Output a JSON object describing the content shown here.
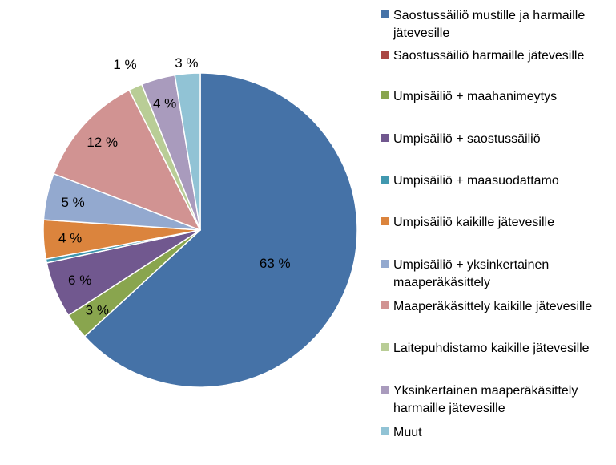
{
  "chart_data": {
    "type": "pie",
    "title": "",
    "start": "top (12 o'clock)",
    "direction": "clockwise",
    "legend_position": "right",
    "slices": [
      {
        "name": "Saostussäiliö mustille ja harmaille jätevesille",
        "legend_lines": [
          "Saostussäiliö mustille ja harmaille",
          "jätevesille"
        ],
        "value": 63.3,
        "label": "63 %",
        "color": "#4572A7"
      },
      {
        "name": "Saostussäiliö harmaille jätevesille",
        "legend_lines": [
          "Saostussäiliö harmaille jätevesille"
        ],
        "value": 0.0,
        "label": "",
        "color": "#AA4643"
      },
      {
        "name": "Umpisäiliö + maahanimeytys",
        "legend_lines": [
          "Umpisäiliö + maahanimeytys"
        ],
        "value": 2.7,
        "label": "3 %",
        "color": "#89A54E"
      },
      {
        "name": "Umpisäiliö + saostussäiliö",
        "legend_lines": [
          "Umpisäiliö + saostussäiliö"
        ],
        "value": 5.8,
        "label": "6 %",
        "color": "#71588F"
      },
      {
        "name": "Umpisäiliö + maasuodattamo",
        "legend_lines": [
          "Umpisäiliö + maasuodattamo"
        ],
        "value": 0.4,
        "label": "",
        "color": "#4198AF"
      },
      {
        "name": "Umpisäiliö kaikille jätevesille",
        "legend_lines": [
          "Umpisäiliö kaikille jätevesille"
        ],
        "value": 4.0,
        "label": "4 %",
        "color": "#DB843D"
      },
      {
        "name": "Umpisäiliö + yksinkertainen maaperäkäsittely",
        "legend_lines": [
          "Umpisäiliö + yksinkertainen",
          "maaperäkäsittely"
        ],
        "value": 4.8,
        "label": "5 %",
        "color": "#93A9CF"
      },
      {
        "name": "Maaperäkäsittely kaikille jätevesille",
        "legend_lines": [
          "Maaperäkäsittely kaikille jätevesille"
        ],
        "value": 11.7,
        "label": "12 %",
        "color": "#D19392"
      },
      {
        "name": "Laitepuhdistamo kaikille jätevesille",
        "legend_lines": [
          "Laitepuhdistamo kaikille jätevesille"
        ],
        "value": 1.4,
        "label": "1 %",
        "color": "#B9CD96"
      },
      {
        "name": "Yksinkertainen maaperäkäsittely harmaille jätevesille",
        "legend_lines": [
          "Yksinkertainen maaperäkäsittely",
          "harmaille jätevesille"
        ],
        "value": 3.5,
        "label": "4 %",
        "color": "#A99BBD"
      },
      {
        "name": "Muut",
        "legend_lines": [
          "Muut"
        ],
        "value": 2.6,
        "label": "3 %",
        "color": "#91C3D5"
      }
    ]
  }
}
